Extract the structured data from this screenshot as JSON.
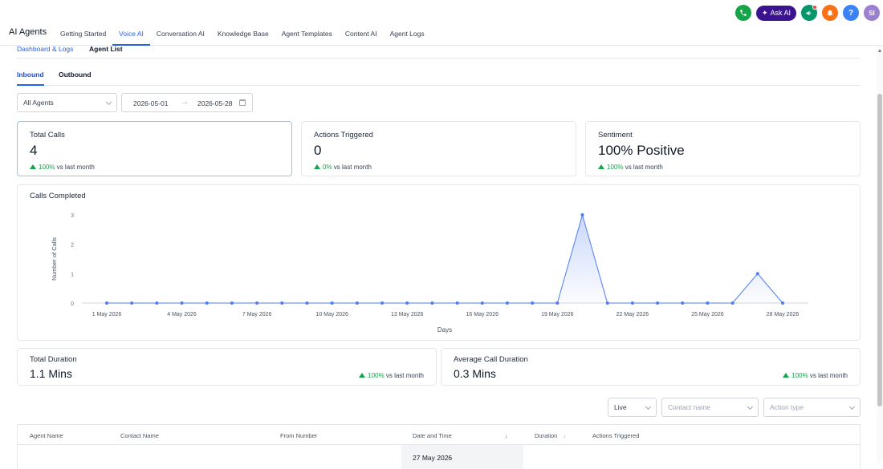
{
  "header": {
    "app_title": "AI Agents",
    "nav": [
      "Getting Started",
      "Voice AI",
      "Conversation AI",
      "Knowledge Base",
      "Agent Templates",
      "Content AI",
      "Agent Logs"
    ],
    "ask_ai": "Ask AI",
    "help": "?",
    "avatar": "SI",
    "colors": {
      "phone": "#16a34a",
      "ask_ai": "#3b1391",
      "megaphone": "#059669",
      "bell": "#f97316",
      "help": "#3b82f6",
      "avatar": "#9b7fd0"
    }
  },
  "subnav": {
    "dashboard": "Dashboard & Logs",
    "agent_list": "Agent List"
  },
  "direction_tabs": {
    "inbound": "Inbound",
    "outbound": "Outbound"
  },
  "filters": {
    "agent": "All Agents",
    "date_start": "2026-05-01",
    "date_end": "2026-05-28"
  },
  "stats": {
    "total_calls": {
      "label": "Total Calls",
      "value": "4",
      "pct": "100%",
      "suffix": "vs last month"
    },
    "actions": {
      "label": "Actions Triggered",
      "value": "0",
      "pct": "0%",
      "suffix": "vs last month"
    },
    "sentiment": {
      "label": "Sentiment",
      "value": "100% Positive",
      "pct": "100%",
      "suffix": "vs last month"
    },
    "total_duration": {
      "label": "Total Duration",
      "value": "1.1 Mins",
      "pct": "100%",
      "suffix": "vs last month"
    },
    "avg_duration": {
      "label": "Average Call Duration",
      "value": "0.3 Mins",
      "pct": "100%",
      "suffix": "vs last month"
    }
  },
  "chart_data": {
    "type": "area",
    "title": "Calls Completed",
    "xlabel": "Days",
    "ylabel": "Number of Calls",
    "ylim": [
      0,
      3
    ],
    "yticks": [
      0,
      1,
      2,
      3
    ],
    "x": [
      "1 May 2026",
      "2 May 2026",
      "3 May 2026",
      "4 May 2026",
      "5 May 2026",
      "6 May 2026",
      "7 May 2026",
      "8 May 2026",
      "9 May 2026",
      "10 May 2026",
      "11 May 2026",
      "12 May 2026",
      "13 May 2026",
      "14 May 2026",
      "15 May 2026",
      "16 May 2026",
      "17 May 2026",
      "18 May 2026",
      "19 May 2026",
      "20 May 2026",
      "21 May 2026",
      "22 May 2026",
      "23 May 2026",
      "24 May 2026",
      "25 May 2026",
      "26 May 2026",
      "27 May 2026",
      "28 May 2026"
    ],
    "xticks": [
      "1 May 2026",
      "4 May 2026",
      "7 May 2026",
      "10 May 2026",
      "13 May 2026",
      "16 May 2026",
      "19 May 2026",
      "22 May 2026",
      "25 May 2026",
      "28 May 2026"
    ],
    "series": [
      {
        "values": [
          0,
          0,
          0,
          0,
          0,
          0,
          0,
          0,
          0,
          0,
          0,
          0,
          0,
          0,
          0,
          0,
          0,
          0,
          0,
          3,
          0,
          0,
          0,
          0,
          0,
          0,
          1,
          0
        ]
      }
    ],
    "color": "#4f7cf0",
    "grid": false
  },
  "table_filters": {
    "status": "Live",
    "contact_placeholder": "Contact name",
    "action_placeholder": "Action type"
  },
  "table": {
    "headers": [
      "Agent Name",
      "Contact Name",
      "From Number",
      "Date and Time",
      "Duration",
      "Actions Triggered"
    ],
    "first_row_date": "27 May 2026"
  }
}
